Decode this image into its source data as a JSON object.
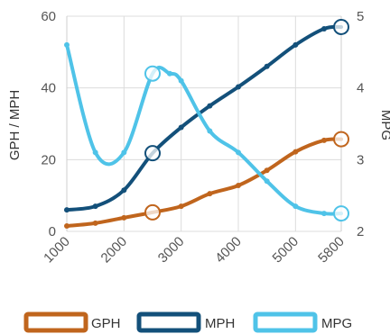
{
  "chart_data": {
    "type": "line",
    "x": [
      1000,
      1500,
      2000,
      2500,
      3000,
      3500,
      4000,
      4500,
      5000,
      5500,
      5800
    ],
    "x_ticks": [
      "1000",
      "2000",
      "3000",
      "4000",
      "5000",
      "5800"
    ],
    "y_left": {
      "label": "GPH / MPH",
      "lim": [
        0,
        60
      ],
      "ticks": [
        "0",
        "20",
        "40",
        "60"
      ]
    },
    "y_right": {
      "label": "MPG",
      "lim": [
        2,
        5
      ],
      "ticks": [
        "2",
        "3",
        "4",
        "5"
      ]
    },
    "grid": true,
    "legend_position": "bottom",
    "series": [
      {
        "name": "GPH",
        "axis": "left",
        "color": "#c0651d",
        "values": [
          1.5,
          2.3,
          3.8,
          5.3,
          7.0,
          10.5,
          12.8,
          17.0,
          22.2,
          25.4,
          25.7
        ],
        "markers": [
          2500,
          5800
        ]
      },
      {
        "name": "MPH",
        "axis": "left",
        "color": "#13507a",
        "values": [
          6.0,
          7.0,
          11.5,
          21.8,
          29.0,
          35.0,
          40.3,
          46.0,
          52.0,
          56.5,
          57.0
        ],
        "markers": [
          2500,
          5800
        ]
      },
      {
        "name": "MPG",
        "axis": "right",
        "color": "#4fc3e8",
        "x": [
          1000,
          1500,
          2000,
          2500,
          2800,
          3000,
          3500,
          4000,
          4500,
          5000,
          5500,
          5800
        ],
        "values": [
          4.6,
          3.1,
          3.1,
          4.2,
          4.2,
          4.1,
          3.4,
          3.1,
          2.7,
          2.35,
          2.25,
          2.25
        ],
        "markers": [
          2500,
          5800
        ]
      }
    ]
  }
}
